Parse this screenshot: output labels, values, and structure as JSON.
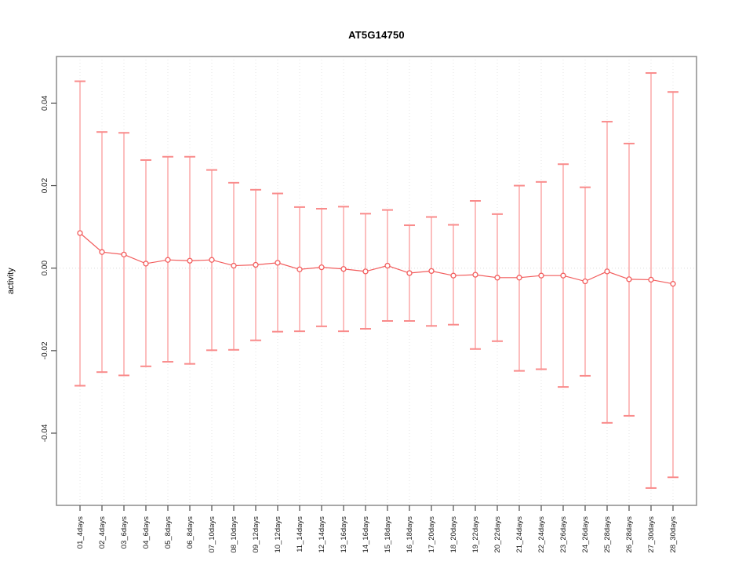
{
  "chart_data": {
    "type": "scatter",
    "subtype": "error-bar-plot",
    "title": "AT5G14750",
    "xlabel": "",
    "ylabel": "activity",
    "legend": "none",
    "grid": "vertical dotted gridline at every category; dotted horizontal line at y=0",
    "categories": [
      "01_4days",
      "02_4days",
      "03_6days",
      "04_6days",
      "05_8days",
      "06_8days",
      "07_10days",
      "08_10days",
      "09_12days",
      "10_12days",
      "11_14days",
      "12_14days",
      "13_16days",
      "14_16days",
      "15_18days",
      "16_18days",
      "17_20days",
      "18_20days",
      "19_22days",
      "20_22days",
      "21_24days",
      "22_24days",
      "23_26days",
      "24_26days",
      "25_28days",
      "26_28days",
      "27_30days",
      "28_30days"
    ],
    "series": [
      {
        "name": "mean",
        "values": [
          0.0085,
          0.0039,
          0.0033,
          0.0011,
          0.002,
          0.0018,
          0.002,
          0.0006,
          0.0008,
          0.0013,
          -0.0003,
          0.0002,
          -0.0002,
          -0.0008,
          0.0006,
          -0.0012,
          -0.0007,
          -0.0018,
          -0.0016,
          -0.0023,
          -0.0023,
          -0.0018,
          -0.0018,
          -0.0032,
          -0.0008,
          -0.0027,
          -0.0028,
          -0.0038
        ]
      },
      {
        "name": "upper_error",
        "values": [
          0.0453,
          0.033,
          0.0328,
          0.0262,
          0.027,
          0.027,
          0.0238,
          0.0207,
          0.019,
          0.0181,
          0.0148,
          0.0144,
          0.0149,
          0.0132,
          0.0141,
          0.0104,
          0.0124,
          0.0105,
          0.0163,
          0.0131,
          0.02,
          0.0209,
          0.0252,
          0.0196,
          0.0355,
          0.0302,
          0.0473,
          0.0427
        ]
      },
      {
        "name": "lower_error",
        "values": [
          -0.0285,
          -0.0252,
          -0.026,
          -0.0238,
          -0.0227,
          -0.0232,
          -0.0199,
          -0.0198,
          -0.0175,
          -0.0154,
          -0.0153,
          -0.0141,
          -0.0153,
          -0.0147,
          -0.0128,
          -0.0128,
          -0.014,
          -0.0137,
          -0.0196,
          -0.0177,
          -0.0249,
          -0.0245,
          -0.0288,
          -0.0261,
          -0.0375,
          -0.0358,
          -0.0533,
          -0.0507
        ]
      }
    ],
    "ylim": [
      -0.0575,
      0.0513
    ],
    "yticks": [
      0.04,
      0.02,
      0,
      -0.02,
      -0.04
    ],
    "ytick_labels": [
      "0.04",
      "0.02",
      "0.00",
      "-0.02",
      "-0.04"
    ],
    "colors": {
      "error_bar": "#FA9B9B",
      "cap": "#F98B8B",
      "marker": "#F25C5C",
      "marker_fill": "#FFFFFF",
      "line": "#F25C5C",
      "grid": "#E6E6E6",
      "zero_line": "#DBDBDB",
      "box": "#8C8C8C",
      "tick": "#4D4D4D",
      "text": "#1A1A1A"
    }
  }
}
